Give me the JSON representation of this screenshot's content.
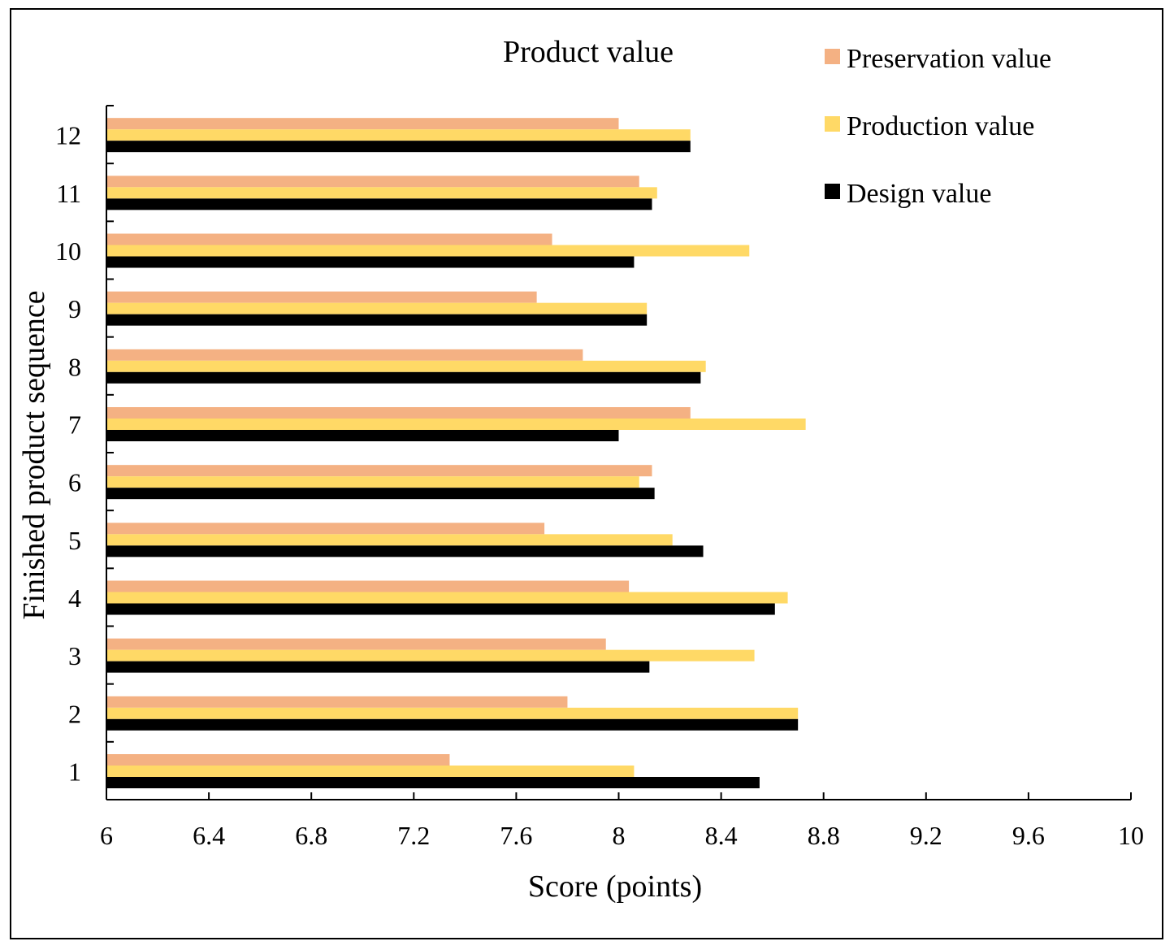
{
  "chart_data": {
    "type": "bar",
    "orientation": "horizontal",
    "title": "Product value",
    "xlabel": "Score (points)",
    "ylabel": "Finished product sequence",
    "xlim": [
      6,
      10
    ],
    "xticks": [
      "6",
      "6.4",
      "6.8",
      "7.2",
      "7.6",
      "8",
      "8.4",
      "8.8",
      "9.2",
      "9.6",
      "10"
    ],
    "categories": [
      "1",
      "2",
      "3",
      "4",
      "5",
      "6",
      "7",
      "8",
      "9",
      "10",
      "11",
      "12"
    ],
    "legend_position": "top-right",
    "grid": false,
    "series": [
      {
        "name": "Preservation value",
        "color": "#F4B183",
        "values": [
          7.34,
          7.8,
          7.95,
          8.04,
          7.71,
          8.13,
          8.28,
          7.86,
          7.68,
          7.74,
          8.08,
          8.0
        ]
      },
      {
        "name": "Production value",
        "color": "#FFD966",
        "values": [
          8.06,
          8.7,
          8.53,
          8.66,
          8.21,
          8.08,
          8.73,
          8.34,
          8.11,
          8.51,
          8.15,
          8.28
        ]
      },
      {
        "name": "Design value",
        "color": "#000000",
        "values": [
          8.55,
          8.7,
          8.12,
          8.61,
          8.33,
          8.14,
          8.0,
          8.32,
          8.11,
          8.06,
          8.13,
          8.28
        ]
      }
    ]
  }
}
